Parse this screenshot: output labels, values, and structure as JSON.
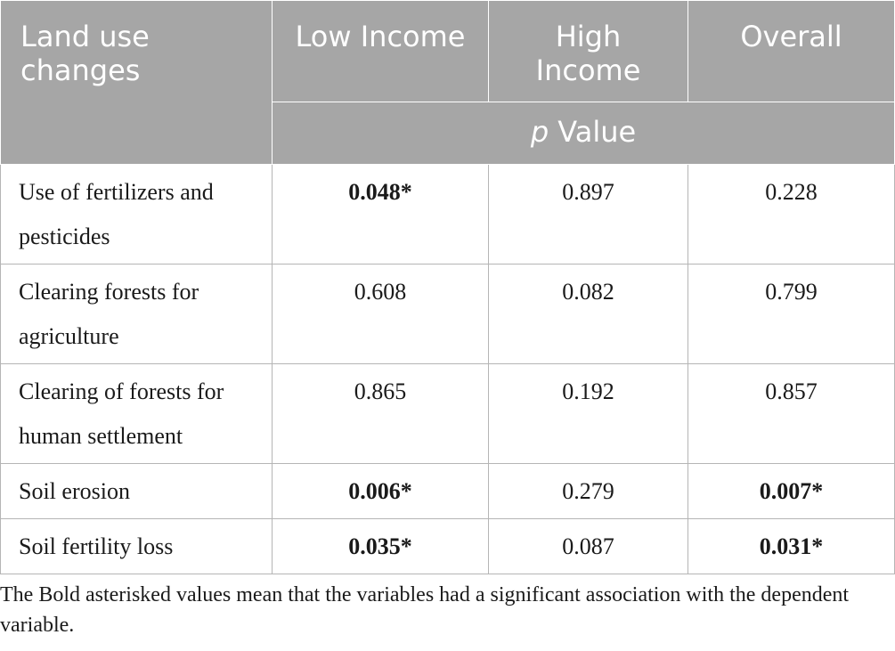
{
  "header": {
    "col0": "Land use changes",
    "col1": "Low Income",
    "col2": "High Income",
    "col3": "Overall",
    "subhead_italic": "p",
    "subhead_rest": " Value"
  },
  "rows": [
    {
      "label": "Use of fertilizers and pesticides",
      "low": "0.048*",
      "low_bold": true,
      "high": "0.897",
      "high_bold": false,
      "overall": "0.228",
      "overall_bold": false
    },
    {
      "label": "Clearing forests for agriculture",
      "low": "0.608",
      "low_bold": false,
      "high": "0.082",
      "high_bold": false,
      "overall": "0.799",
      "overall_bold": false
    },
    {
      "label": "Clearing of forests for human settlement",
      "low": "0.865",
      "low_bold": false,
      "high": "0.192",
      "high_bold": false,
      "overall": "0.857",
      "overall_bold": false
    },
    {
      "label": "Soil erosion",
      "low": "0.006*",
      "low_bold": true,
      "high": "0.279",
      "high_bold": false,
      "overall": "0.007*",
      "overall_bold": true
    },
    {
      "label": "Soil fertility loss",
      "low": "0.035*",
      "low_bold": true,
      "high": "0.087",
      "high_bold": false,
      "overall": "0.031*",
      "overall_bold": true
    }
  ],
  "footnote": "The Bold asterisked values mean that the variables had a significant association with the dependent variable."
}
